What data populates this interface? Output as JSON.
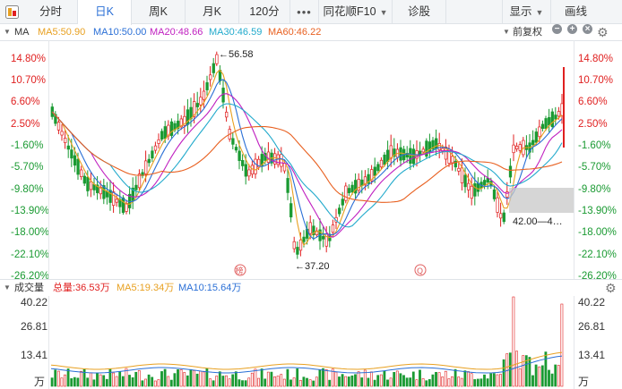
{
  "toolbar": {
    "tabs": [
      {
        "label": "分时",
        "active": false
      },
      {
        "label": "日K",
        "active": true
      },
      {
        "label": "周K",
        "active": false
      },
      {
        "label": "月K",
        "active": false
      },
      {
        "label": "120分",
        "active": false
      },
      {
        "label": "•••",
        "active": false
      },
      {
        "label": "同花顺F10",
        "active": false,
        "dropdown": true
      },
      {
        "label": "诊股",
        "active": false
      }
    ],
    "right": [
      {
        "label": "显示",
        "dropdown": true
      },
      {
        "label": "画线",
        "dropdown": false
      }
    ]
  },
  "price_panel": {
    "indicator": "MA",
    "ma": [
      {
        "label": "MA5:50.90",
        "color": "#e8a020"
      },
      {
        "label": "MA10:50.00",
        "color": "#2a6fd6"
      },
      {
        "label": "MA20:48.66",
        "color": "#c020c0"
      },
      {
        "label": "MA30:46.59",
        "color": "#22aacc"
      },
      {
        "label": "MA60:46.22",
        "color": "#e86020"
      }
    ],
    "adjust": "前复权",
    "y_ticks": [
      "14.80%",
      "10.70%",
      "6.60%",
      "2.50%",
      "-1.60%",
      "-5.70%",
      "-9.80%",
      "-13.90%",
      "-18.00%",
      "-22.10%",
      "-26.20%"
    ],
    "annotations": {
      "high": "←56.58",
      "low": "←37.20",
      "range": "42.00—4…",
      "marker1": "榜",
      "marker2": "Q"
    }
  },
  "volume_panel": {
    "title": "成交量",
    "total": "总量:36.53万",
    "ma5": "MA5:19.34万",
    "ma10": "MA10:15.64万",
    "y_ticks": [
      "40.22",
      "26.81",
      "13.41",
      "万"
    ]
  },
  "colors": {
    "up": "#e02020",
    "down": "#1a9a32",
    "ma5": "#e8a020",
    "ma10": "#2a6fd6",
    "ma20": "#c020c0",
    "ma30": "#22aacc",
    "ma60": "#e86020"
  },
  "icons": [
    "stock-icon",
    "minus-icon",
    "plus-icon",
    "close-icon",
    "gear-icon"
  ]
}
